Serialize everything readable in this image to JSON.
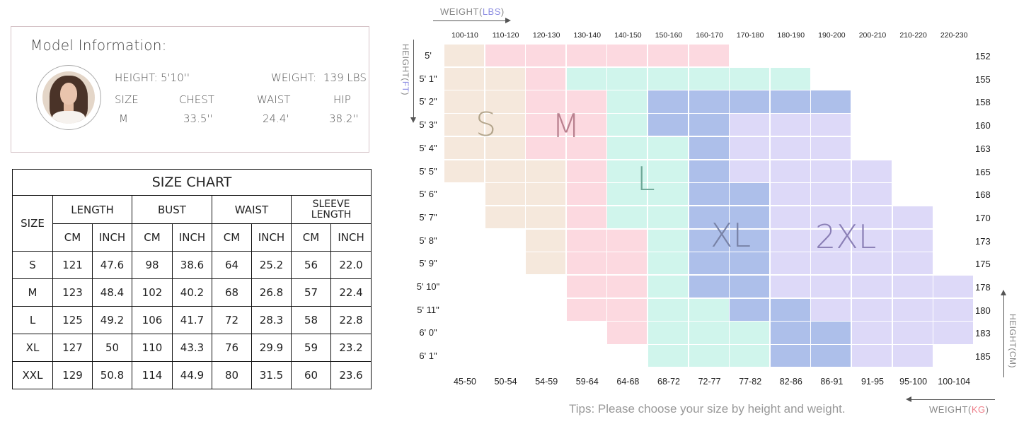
{
  "model_info": {
    "title": "Model Information:",
    "height_label": "HEIGHT:",
    "height_value": "5'10''",
    "weight_label": "WEIGHT:",
    "weight_value": "139 LBS",
    "columns": [
      "SIZE",
      "CHEST",
      "WAIST",
      "HIP"
    ],
    "values": [
      "M",
      "33.5''",
      "24.4'",
      "38.2''"
    ]
  },
  "size_table": {
    "title": "SIZE CHART",
    "size_header": "SIZE",
    "groups": [
      "LENGTH",
      "BUST",
      "WAIST",
      "SLEEVE LENGTH"
    ],
    "units": [
      "CM",
      "INCH",
      "CM",
      "INCH",
      "CM",
      "INCH",
      "CM",
      "INCH"
    ],
    "rows": [
      {
        "size": "S",
        "values": [
          "121",
          "47.6",
          "98",
          "38.6",
          "64",
          "25.2",
          "56",
          "22.0"
        ]
      },
      {
        "size": "M",
        "values": [
          "123",
          "48.4",
          "102",
          "40.2",
          "68",
          "26.8",
          "57",
          "22.4"
        ]
      },
      {
        "size": "L",
        "values": [
          "125",
          "49.2",
          "106",
          "41.7",
          "72",
          "28.3",
          "58",
          "22.8"
        ]
      },
      {
        "size": "XL",
        "values": [
          "127",
          "50",
          "110",
          "43.3",
          "76",
          "29.9",
          "59",
          "23.2"
        ]
      },
      {
        "size": "XXL",
        "values": [
          "129",
          "50.8",
          "114",
          "44.9",
          "80",
          "31.5",
          "60",
          "23.6"
        ]
      }
    ]
  },
  "size_grid": {
    "weight_lbs_title": "WEIGHT(",
    "weight_lbs_unit": "LBS",
    "weight_kg_title": "WEIGHT(",
    "weight_kg_unit": "KG",
    "height_ft_title": "HEIGHT(",
    "height_ft_unit": "FT",
    "height_cm_title": "HEIGHT(",
    "height_cm_unit": "CM",
    "close_paren": ")",
    "weight_lbs": [
      "100-110",
      "110-120",
      "120-130",
      "130-140",
      "140-150",
      "150-160",
      "160-170",
      "170-180",
      "180-190",
      "190-200",
      "200-210",
      "210-220",
      "220-230"
    ],
    "weight_kg": [
      "45-50",
      "50-54",
      "54-59",
      "59-64",
      "64-68",
      "68-72",
      "72-77",
      "77-82",
      "82-86",
      "86-91",
      "91-95",
      "95-100",
      "100-104"
    ],
    "height_ft": [
      "5'",
      "5' 1\"",
      "5' 2\"",
      "5' 3\"",
      "5' 4\"",
      "5' 5\"",
      "5' 6\"",
      "5' 7\"",
      "5' 8\"",
      "5' 9\"",
      "5' 10\"",
      "5' 11\"",
      "6' 0\"",
      "6' 1\""
    ],
    "height_cm": [
      "152",
      "155",
      "158",
      "160",
      "163",
      "165",
      "168",
      "170",
      "173",
      "175",
      "178",
      "180",
      "183",
      "185"
    ],
    "sizes": {
      "S": {
        "label": "S",
        "fill": "#f5e8dc",
        "text": "#b3a58c"
      },
      "M": {
        "label": "M",
        "fill": "#fcd9e0",
        "text": "#b9818f"
      },
      "L": {
        "label": "L",
        "fill": "#d0f5ec",
        "text": "#6fa898"
      },
      "XL": {
        "label": "XL",
        "fill": "#adbfea",
        "text": "#7882a6"
      },
      "2XL": {
        "label": "2XL",
        "fill": "#ddd9f8",
        "text": "#8a7fb6"
      }
    },
    "grid": [
      [
        "S",
        "M",
        "M",
        "M",
        "M",
        "M",
        "M",
        "",
        "",
        "",
        "",
        "",
        ""
      ],
      [
        "S",
        "S",
        "M",
        "L",
        "L",
        "L",
        "L",
        "L",
        "L",
        "",
        "",
        "",
        ""
      ],
      [
        "S",
        "S",
        "M",
        "M",
        "L",
        "XL",
        "XL",
        "XL",
        "XL",
        "XL",
        "",
        "",
        ""
      ],
      [
        "S",
        "S",
        "M",
        "M",
        "L",
        "XL",
        "XL",
        "2XL",
        "2XL",
        "2XL",
        "",
        "",
        ""
      ],
      [
        "S",
        "S",
        "M",
        "M",
        "L",
        "L",
        "XL",
        "2XL",
        "2XL",
        "2XL",
        "",
        "",
        ""
      ],
      [
        "S",
        "S",
        "S",
        "M",
        "L",
        "L",
        "XL",
        "2XL",
        "2XL",
        "2XL",
        "2XL",
        "",
        ""
      ],
      [
        "",
        "S",
        "S",
        "M",
        "L",
        "L",
        "XL",
        "XL",
        "2XL",
        "2XL",
        "2XL",
        "",
        ""
      ],
      [
        "",
        "S",
        "S",
        "M",
        "L",
        "L",
        "XL",
        "XL",
        "2XL",
        "2XL",
        "2XL",
        "2XL",
        ""
      ],
      [
        "",
        "",
        "S",
        "M",
        "M",
        "L",
        "XL",
        "XL",
        "2XL",
        "2XL",
        "2XL",
        "2XL",
        ""
      ],
      [
        "",
        "",
        "S",
        "M",
        "M",
        "L",
        "XL",
        "XL",
        "2XL",
        "2XL",
        "2XL",
        "2XL",
        ""
      ],
      [
        "",
        "",
        "",
        "M",
        "M",
        "L",
        "XL",
        "XL",
        "2XL",
        "2XL",
        "2XL",
        "2XL",
        "2XL"
      ],
      [
        "",
        "",
        "",
        "M",
        "M",
        "L",
        "L",
        "XL",
        "XL",
        "2XL",
        "2XL",
        "2XL",
        "2XL"
      ],
      [
        "",
        "",
        "",
        "",
        "M",
        "L",
        "L",
        "L",
        "XL",
        "XL",
        "2XL",
        "2XL",
        "2XL"
      ],
      [
        "",
        "",
        "",
        "",
        "",
        "L",
        "L",
        "L",
        "XL",
        "XL",
        "2XL",
        "2XL",
        ""
      ]
    ],
    "tips": "Tips: Please choose your size by height and weight."
  }
}
